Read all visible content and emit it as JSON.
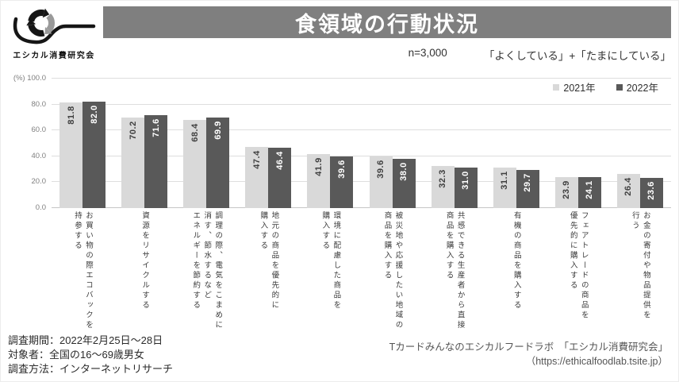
{
  "logo": {
    "org_name": "エシカル消費研究会"
  },
  "header": {
    "title": "食領域の行動状況"
  },
  "subtitle": {
    "n_label": "n=3,000",
    "scope_label": "「よくしている」+「たまにしている」"
  },
  "legend": [
    {
      "label": "2021年",
      "color": "#d9d9d9"
    },
    {
      "label": "2022年",
      "color": "#595959"
    }
  ],
  "chart_data": {
    "type": "bar",
    "title": "食領域の行動状況",
    "xlabel": "",
    "ylabel": "(%)",
    "ylim": [
      0,
      100
    ],
    "grid": true,
    "legend_position": "top-right",
    "yticks": [
      {
        "value": 100,
        "label": "100.0",
        "prefix": "(%)"
      },
      {
        "value": 80,
        "label": "80.0"
      },
      {
        "value": 60,
        "label": "60.0"
      },
      {
        "value": 40,
        "label": "40.0"
      },
      {
        "value": 20,
        "label": "20.0"
      },
      {
        "value": 0,
        "label": "0.0"
      }
    ],
    "categories": [
      "お買い物の際エコバックを\n持参する",
      "資源をリサイクルする",
      "調理の際、電気をこまめに\n消す、節水するなど\nエネルギーを節約する",
      "地元の商品を優先的に\n購入する",
      "環境に配慮した商品を\n購入する",
      "被災地や応援したい地域の\n商品を購入する",
      "共感できる生産者から直接\n商品を購入する",
      "有機の商品を購入する",
      "フェアトレードの商品を\n優先的に購入する",
      "お金の寄付や物品提供を\n行う"
    ],
    "series": [
      {
        "name": "2021年",
        "color": "#d9d9d9",
        "value_label_color": "#404040",
        "values": [
          81.8,
          70.2,
          68.4,
          47.4,
          41.9,
          39.6,
          32.3,
          31.1,
          23.9,
          26.4
        ]
      },
      {
        "name": "2022年",
        "color": "#595959",
        "value_label_color": "#ffffff",
        "values": [
          82.0,
          71.6,
          69.9,
          46.4,
          39.6,
          38.0,
          31.0,
          29.7,
          24.1,
          23.6
        ]
      }
    ]
  },
  "footnotes": {
    "lines": [
      "調査期間：2022年2月25日～28日",
      "対象者：全国の16～69歳男女",
      "調査方法：インターネットリサーチ"
    ]
  },
  "source": {
    "lines": [
      "Tカードみんなのエシカルフードラボ　「エシカル消費研究会」",
      "（https://ethicalfoodlab.tsite.jp）"
    ]
  }
}
